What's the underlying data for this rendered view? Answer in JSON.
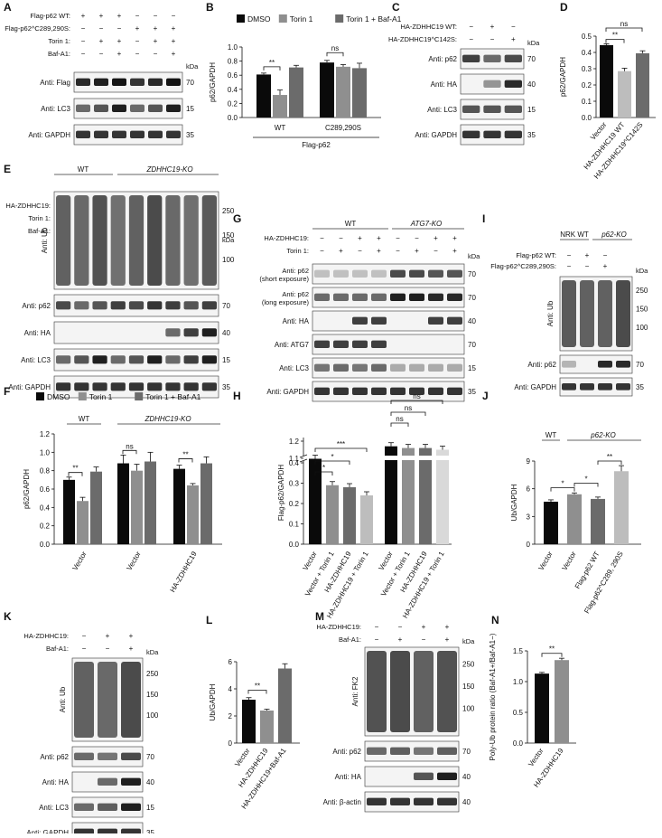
{
  "panels": {
    "A": {
      "letter": "A",
      "rows": [
        "Flag-p62 WT:",
        "Flag-p62^C289,290S:",
        "Torin 1:",
        "Baf-A1:"
      ],
      "signs": [
        [
          "+",
          "+",
          "+",
          "−",
          "−",
          "−"
        ],
        [
          "−",
          "−",
          "−",
          "+",
          "+",
          "+"
        ],
        [
          "−",
          "+",
          "+",
          "−",
          "+",
          "+"
        ],
        [
          "−",
          "−",
          "+",
          "−",
          "−",
          "+"
        ]
      ],
      "kda": "kDa",
      "blots": [
        {
          "label": "Anti: Flag",
          "mw": "70"
        },
        {
          "label": "Anti: LC3",
          "mw": "15"
        },
        {
          "label": "Anti: GAPDH",
          "mw": "35"
        }
      ]
    },
    "B": {
      "letter": "B",
      "legend": [
        "DMSO",
        "Torin 1",
        "Torin 1 + Baf-A1"
      ],
      "ylabel": "p62/GAPDH",
      "yticks": [
        "0.0",
        "0.2",
        "0.4",
        "0.6",
        "0.8",
        "1.0"
      ],
      "groups": [
        "WT",
        "C289,290S"
      ],
      "footer": "Flag-p62",
      "sig": [
        "**",
        "ns"
      ]
    },
    "C": {
      "letter": "C",
      "rows": [
        "HA-ZDHHC19 WT:",
        "HA-ZDHHC19^C142S:"
      ],
      "signs": [
        [
          "−",
          "+",
          "−"
        ],
        [
          "−",
          "−",
          "+"
        ]
      ],
      "kda": "kDa",
      "blots": [
        {
          "label": "Anti: p62",
          "mw": "70"
        },
        {
          "label": "Anti: HA",
          "mw": "40"
        },
        {
          "label": "Anti: LC3",
          "mw": "15"
        },
        {
          "label": "Anti: GAPDH",
          "mw": "35"
        }
      ]
    },
    "D": {
      "letter": "D",
      "ylabel": "p62/GAPDH",
      "yticks": [
        "0.0",
        "0.1",
        "0.2",
        "0.3",
        "0.4",
        "0.5"
      ],
      "categories": [
        "Vector",
        "HA-ZDHHC19 WT",
        "HA-ZDHHC19^C142S"
      ],
      "sig": [
        "**",
        "ns"
      ]
    },
    "E": {
      "letter": "E",
      "groups": [
        "WT",
        "ZDHHC19-KO"
      ],
      "rows": [
        "HA-ZDHHC19:",
        "Torin 1:",
        "Baf-A1:"
      ],
      "signs": [
        [
          "−",
          "−",
          "−",
          "−",
          "−",
          "−",
          "+",
          "+",
          "+"
        ],
        [
          "−",
          "+",
          "+",
          "−",
          "+",
          "+",
          "−",
          "+",
          "+"
        ],
        [
          "−",
          "−",
          "+",
          "−",
          "−",
          "+",
          "−",
          "−",
          "+"
        ]
      ],
      "kda": "kDa",
      "ub_label": "Anti: Ub",
      "ub_mw": [
        "250",
        "150",
        "100"
      ],
      "blots": [
        {
          "label": "Anti: p62",
          "mw": "70"
        },
        {
          "label": "Anti: HA",
          "mw": "40"
        },
        {
          "label": "Anti: LC3",
          "mw": "15"
        },
        {
          "label": "Anti: GAPDH",
          "mw": "35"
        }
      ]
    },
    "F": {
      "letter": "F",
      "legend": [
        "DMSO",
        "Torin 1",
        "Torin 1 + Baf-A1"
      ],
      "groups": [
        "WT",
        "ZDHHC19-KO"
      ],
      "ylabel": "p62/GAPDH",
      "yticks": [
        "0.0",
        "0.2",
        "0.4",
        "0.6",
        "0.8",
        "1.0",
        "1.2"
      ],
      "categories": [
        "Vector",
        "Vector",
        "HA-ZDHHC19"
      ],
      "sig": [
        "**",
        "ns",
        "**"
      ]
    },
    "G": {
      "letter": "G",
      "groups": [
        "WT",
        "ATG7-KO"
      ],
      "rows": [
        "HA-ZDHHC19:",
        "Torin 1:"
      ],
      "signs": [
        [
          "−",
          "−",
          "+",
          "+",
          "−",
          "−",
          "+",
          "+"
        ],
        [
          "−",
          "+",
          "−",
          "+",
          "−",
          "+",
          "−",
          "+"
        ]
      ],
      "kda": "kDa",
      "blots": [
        {
          "label": "Anti: p62",
          "sub": "(short exposure)",
          "mw": "70"
        },
        {
          "label": "Anti: p62",
          "sub": "(long exposure)",
          "mw": "70"
        },
        {
          "label": "Anti: HA",
          "mw": "40"
        },
        {
          "label": "Anti: ATG7",
          "mw": "70"
        },
        {
          "label": "Anti: LC3",
          "mw": "15"
        },
        {
          "label": "Anti: GAPDH",
          "mw": "35"
        }
      ]
    },
    "H": {
      "letter": "H",
      "ylabel": "Flag-p62/GAPDH",
      "yticks": [
        "0.0",
        "0.1",
        "0.2",
        "0.3",
        "0.4",
        "1.1",
        "1.2"
      ],
      "categories": [
        "Vector",
        "Vector + Torin 1",
        "HA-ZDHHC19",
        "HA-ZDHHC19 + Torin 1",
        "Vector",
        "Vector + Torin 1",
        "HA-ZDHHC19",
        "HA-ZDHHC19 + Torin 1"
      ],
      "sig": [
        "*",
        "*",
        "***",
        "ns",
        "ns",
        "ns"
      ]
    },
    "I": {
      "letter": "I",
      "groups": [
        "NRK WT",
        "p62-KO"
      ],
      "rows": [
        "Flag-p62 WT:",
        "Flag-p62^C289,290S:"
      ],
      "signs": [
        [
          "−",
          "+",
          "−"
        ],
        [
          "−",
          "−",
          "+"
        ]
      ],
      "kda": "kDa",
      "ub_label": "Anti: Ub",
      "ub_mw": [
        "250",
        "150",
        "100"
      ],
      "blots": [
        {
          "label": "Anti: p62",
          "mw": "70"
        },
        {
          "label": "Anti: GAPDH",
          "mw": "35"
        }
      ]
    },
    "J": {
      "letter": "J",
      "groups": [
        "WT",
        "p62-KO"
      ],
      "ylabel": "Ub/GAPDH",
      "yticks": [
        "0",
        "3",
        "6",
        "9"
      ],
      "categories": [
        "Vector",
        "Vector",
        "Flag-p62 WT",
        "Flag-p62^C289, 290S"
      ],
      "sig": [
        "*",
        "*",
        "**"
      ]
    },
    "K": {
      "letter": "K",
      "rows": [
        "HA-ZDHHC19:",
        "Baf-A1:"
      ],
      "signs": [
        [
          "−",
          "+",
          "+"
        ],
        [
          "−",
          "−",
          "+"
        ]
      ],
      "kda": "kDa",
      "ub_label": "Anti: Ub",
      "ub_mw": [
        "250",
        "150",
        "100"
      ],
      "blots": [
        {
          "label": "Anti: p62",
          "mw": "70"
        },
        {
          "label": "Anti: HA",
          "mw": "40"
        },
        {
          "label": "Anti: LC3",
          "mw": "15"
        },
        {
          "label": "Anti: GAPDH",
          "mw": "35"
        }
      ]
    },
    "L": {
      "letter": "L",
      "ylabel": "Ub/GAPDH",
      "yticks": [
        "0",
        "2",
        "4",
        "6"
      ],
      "categories": [
        "Vector",
        "HA-ZDHHC19",
        "HA-ZDHHC19+Baf-A1"
      ],
      "sig": [
        "**"
      ]
    },
    "M": {
      "letter": "M",
      "rows": [
        "HA-ZDHHC19:",
        "Baf-A1:"
      ],
      "signs": [
        [
          "−",
          "−",
          "+",
          "+"
        ],
        [
          "−",
          "+",
          "−",
          "+"
        ]
      ],
      "kda": "kDa",
      "ub_label": "Anti: FK2",
      "ub_mw": [
        "250",
        "150",
        "100"
      ],
      "blots": [
        {
          "label": "Anti: p62",
          "mw": "70"
        },
        {
          "label": "Anti: HA",
          "mw": "40"
        },
        {
          "label": "Anti: β-actin",
          "mw": "40"
        }
      ]
    },
    "N": {
      "letter": "N",
      "ylabel": "Poly-Ub protein ratio (Baf-A1+/Baf-A1−)",
      "yticks": [
        "0.0",
        "0.5",
        "1.0",
        "1.5"
      ],
      "categories": [
        "Vector",
        "HA-ZDHHC19"
      ],
      "sig": [
        "**"
      ]
    }
  },
  "colors": {
    "black": "#0a0a0a",
    "dgray": "#6b6b6b",
    "mgray": "#8f8f8f",
    "lgray": "#bdbdbd",
    "vlgray": "#d9d9d9"
  },
  "chart_data": [
    {
      "panel": "B",
      "type": "bar",
      "categories": [
        "WT",
        "C289,290S"
      ],
      "ylabel": "p62/GAPDH",
      "ylim": [
        0,
        1.0
      ],
      "series": [
        {
          "name": "DMSO",
          "values": [
            0.61,
            0.78
          ]
        },
        {
          "name": "Torin 1",
          "values": [
            0.32,
            0.72
          ]
        },
        {
          "name": "Torin 1 + Baf-A1",
          "values": [
            0.71,
            0.7
          ]
        }
      ],
      "errors": [
        [
          0.02,
          0.03
        ],
        [
          0.07,
          0.03
        ],
        [
          0.03,
          0.07
        ]
      ]
    },
    {
      "panel": "D",
      "type": "bar",
      "categories": [
        "Vector",
        "HA-ZDHHC19 WT",
        "HA-ZDHHC19^C142S"
      ],
      "ylabel": "p62/GAPDH",
      "ylim": [
        0,
        0.5
      ],
      "values": [
        0.445,
        0.285,
        0.395
      ],
      "errors": [
        0.008,
        0.018,
        0.015
      ]
    },
    {
      "panel": "F",
      "type": "bar",
      "categories": [
        "Vector",
        "Vector",
        "HA-ZDHHC19"
      ],
      "ylabel": "p62/GAPDH",
      "ylim": [
        0,
        1.2
      ],
      "series": [
        {
          "name": "DMSO",
          "values": [
            0.7,
            0.88,
            0.82
          ]
        },
        {
          "name": "Torin 1",
          "values": [
            0.47,
            0.8,
            0.64
          ]
        },
        {
          "name": "Torin 1 + Baf-A1",
          "values": [
            0.79,
            0.9,
            0.88
          ]
        }
      ],
      "errors": [
        [
          0.03,
          0.09,
          0.04
        ],
        [
          0.04,
          0.07,
          0.02
        ],
        [
          0.05,
          0.1,
          0.07
        ]
      ]
    },
    {
      "panel": "H",
      "type": "bar",
      "categories": [
        "Vector",
        "Vector + Torin 1",
        "HA-ZDHHC19",
        "HA-ZDHHC19 + Torin 1",
        "Vector",
        "Vector + Torin 1",
        "HA-ZDHHC19",
        "HA-ZDHHC19 + Torin 1"
      ],
      "ylabel": "Flag-p62/GAPDH",
      "values": [
        0.42,
        0.29,
        0.28,
        0.24,
        1.17,
        1.16,
        1.16,
        1.15
      ],
      "errors": [
        0.005,
        0.04,
        0.03,
        0.02,
        0.012,
        0.01,
        0.01,
        0.008
      ]
    },
    {
      "panel": "J",
      "type": "bar",
      "categories": [
        "Vector",
        "Vector",
        "Flag-p62 WT",
        "Flag-p62^C289, 290S"
      ],
      "ylabel": "Ub/GAPDH",
      "ylim": [
        0,
        9
      ],
      "values": [
        4.6,
        5.4,
        4.9,
        7.9
      ],
      "errors": [
        0.2,
        0.15,
        0.2,
        0.6
      ]
    },
    {
      "panel": "L",
      "type": "bar",
      "categories": [
        "Vector",
        "HA-ZDHHC19",
        "HA-ZDHHC19+Baf-A1"
      ],
      "ylabel": "Ub/GAPDH",
      "ylim": [
        0,
        6
      ],
      "values": [
        3.2,
        2.4,
        5.5
      ],
      "errors": [
        0.15,
        0.1,
        0.35
      ]
    },
    {
      "panel": "N",
      "type": "bar",
      "categories": [
        "Vector",
        "HA-ZDHHC19"
      ],
      "ylabel": "Poly-Ub protein ratio (Baf-A1+/Baf-A1−)",
      "ylim": [
        0,
        1.5
      ],
      "values": [
        1.13,
        1.35
      ],
      "errors": [
        0.02,
        0.03
      ]
    }
  ]
}
